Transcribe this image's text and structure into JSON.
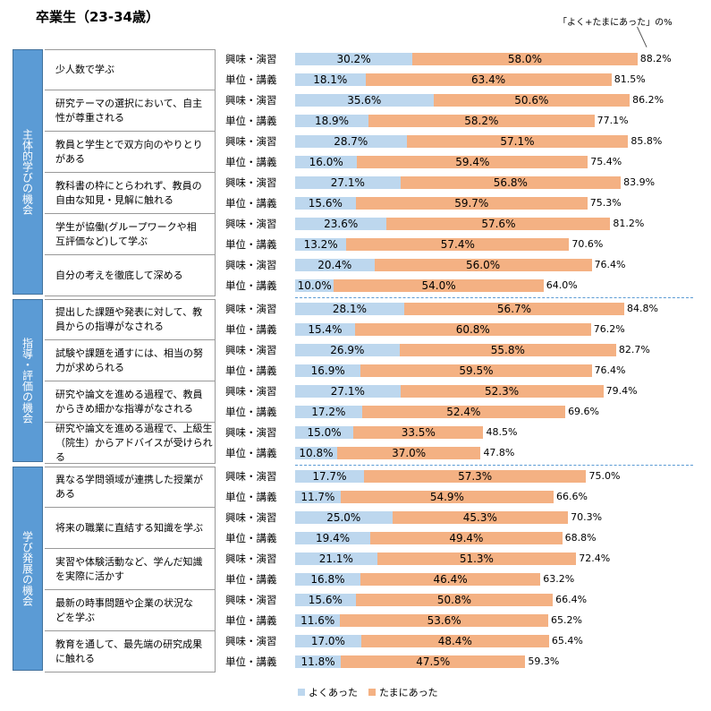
{
  "chart_data": {
    "type": "bar",
    "stacked": true,
    "orientation": "horizontal",
    "title": "卒業生（23-34歳）",
    "annotation": "「よく+たまにあった」の%",
    "legend": [
      "よくあった",
      "たまにあった"
    ],
    "colors": [
      "#bdd7ee",
      "#f4b183"
    ],
    "row_types": [
      "興味・演習",
      "単位・講義"
    ],
    "groups": [
      {
        "name": "主体的学びの機会",
        "items": [
          {
            "label": "少人数で学ぶ",
            "rows": [
              [
                30.2,
                58.0,
                88.2
              ],
              [
                18.1,
                63.4,
                81.5
              ]
            ]
          },
          {
            "label": "研究テーマの選択において、自主\n性が尊重される",
            "rows": [
              [
                35.6,
                50.6,
                86.2
              ],
              [
                18.9,
                58.2,
                77.1
              ]
            ]
          },
          {
            "label": "教員と学生とで双方向のやりとり\nがある",
            "rows": [
              [
                28.7,
                57.1,
                85.8
              ],
              [
                16.0,
                59.4,
                75.4
              ]
            ]
          },
          {
            "label": "教科書の枠にとらわれず、教員の\n自由な知見・見解に触れる",
            "rows": [
              [
                27.1,
                56.8,
                83.9
              ],
              [
                15.6,
                59.7,
                75.3
              ]
            ]
          },
          {
            "label": "学生が協働(グループワークや相\n互評価など)して学ぶ",
            "rows": [
              [
                23.6,
                57.6,
                81.2
              ],
              [
                13.2,
                57.4,
                70.6
              ]
            ]
          },
          {
            "label": "自分の考えを徹底して深める",
            "rows": [
              [
                20.4,
                56.0,
                76.4
              ],
              [
                10.0,
                54.0,
                64.0
              ]
            ]
          }
        ]
      },
      {
        "name": "指導・評価の機会",
        "items": [
          {
            "label": "提出した課題や発表に対して、教\n員からの指導がなされる",
            "rows": [
              [
                28.1,
                56.7,
                84.8
              ],
              [
                15.4,
                60.8,
                76.2
              ]
            ]
          },
          {
            "label": "試験や課題を通すには、相当の努\n力が求められる",
            "rows": [
              [
                26.9,
                55.8,
                82.7
              ],
              [
                16.9,
                59.5,
                76.4
              ]
            ]
          },
          {
            "label": "研究や論文を進める過程で、教員\nからきめ細かな指導がなされる",
            "rows": [
              [
                27.1,
                52.3,
                79.4
              ],
              [
                17.2,
                52.4,
                69.6
              ]
            ]
          },
          {
            "label": "研究や論文を進める過程で、上級生\n（院生）からアドバイスが受けられる",
            "rows": [
              [
                15.0,
                33.5,
                48.5
              ],
              [
                10.8,
                37.0,
                47.8
              ]
            ]
          }
        ]
      },
      {
        "name": "学び発展の機会",
        "items": [
          {
            "label": "異なる学問領域が連携した授業が\nある",
            "rows": [
              [
                17.7,
                57.3,
                75.0
              ],
              [
                11.7,
                54.9,
                66.6
              ]
            ]
          },
          {
            "label": "将来の職業に直結する知識を学ぶ",
            "rows": [
              [
                25.0,
                45.3,
                70.3
              ],
              [
                19.4,
                49.4,
                68.8
              ]
            ]
          },
          {
            "label": "実習や体験活動など、学んだ知識\nを実際に活かす",
            "rows": [
              [
                21.1,
                51.3,
                72.4
              ],
              [
                16.8,
                46.4,
                63.2
              ]
            ]
          },
          {
            "label": "最新の時事問題や企業の状況な\nどを学ぶ",
            "rows": [
              [
                15.6,
                50.8,
                66.4
              ],
              [
                11.6,
                53.6,
                65.2
              ]
            ]
          },
          {
            "label": "教育を通して、最先端の研究成果\nに触れる",
            "rows": [
              [
                17.0,
                48.4,
                65.4
              ],
              [
                11.8,
                47.5,
                59.3
              ]
            ]
          }
        ]
      }
    ]
  }
}
